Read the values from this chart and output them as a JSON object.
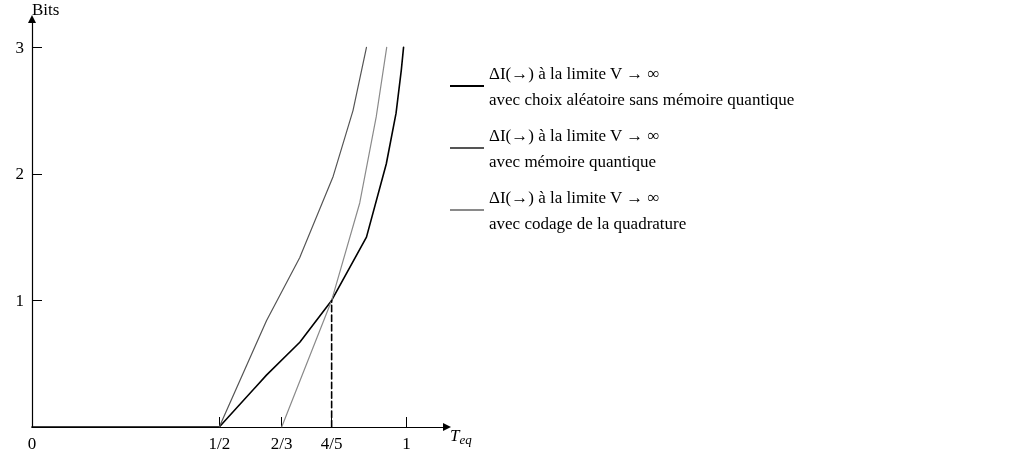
{
  "chart_data": {
    "type": "line",
    "xlabel": "T$_{eq}$",
    "ylabel": "Bits",
    "xlim": [
      0,
      1.1
    ],
    "ylim": [
      0,
      3.2
    ],
    "xticks": [
      0,
      {
        "value": 0.5,
        "label": "1/2"
      },
      {
        "value": 0.6667,
        "label": "2/3"
      },
      {
        "value": 0.8,
        "label": "4/5"
      },
      1
    ],
    "yticks": [
      {
        "value": 0,
        "label": null
      },
      1,
      2,
      3
    ],
    "grid": false,
    "legend": "right",
    "marker": "none",
    "series": [
      {
        "name": "ΔI(→) à la limite V → ∞\navec choix aléatoire sans mémoire quantique",
        "color": "#000000",
        "x": [
          0,
          0.5,
          0.626,
          0.715,
          0.8,
          0.893,
          0.946,
          0.972,
          0.986,
          0.992
        ],
        "values": [
          0,
          0,
          0.41,
          0.67,
          1.0,
          1.5,
          2.08,
          2.48,
          2.82,
          3.0
        ]
      },
      {
        "name": "ΔI(→) à la limite V → ∞\navec mémoire quantique",
        "color": "#555555",
        "x": [
          0.5,
          0.626,
          0.715,
          0.804,
          0.857,
          0.893
        ],
        "values": [
          0,
          0.84,
          1.34,
          1.98,
          2.5,
          3.0
        ]
      },
      {
        "name": "ΔI(→) à la limite V → ∞\navec codage de la quadrature",
        "color": "#8a8a8a",
        "x": [
          0.6667,
          0.8,
          0.875,
          0.919,
          0.947
        ],
        "values": [
          0,
          1.0,
          1.77,
          2.45,
          3.0
        ]
      },
      {
        "color": "#000000",
        "line_style": "dashed",
        "x": [
          0.8,
          0.8
        ],
        "values": [
          0,
          1.0
        ]
      }
    ]
  }
}
